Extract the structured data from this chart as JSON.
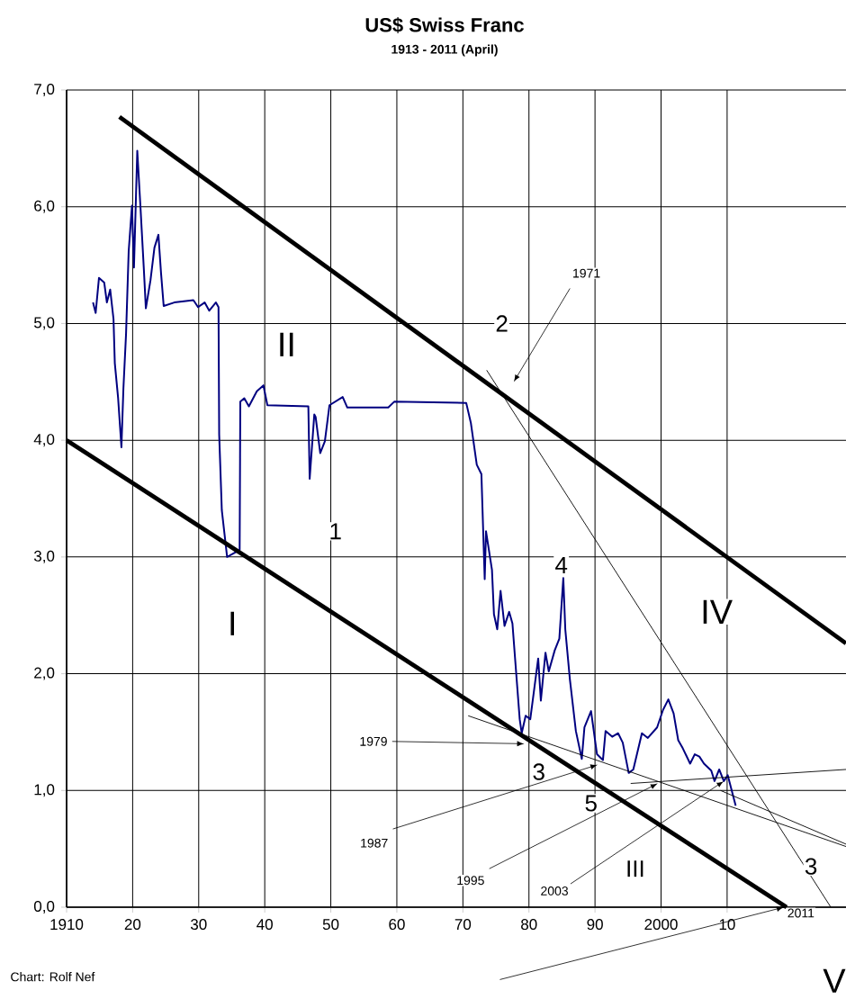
{
  "chart_data": {
    "type": "line",
    "title": "US$ Swiss Franc",
    "subtitle": "1913 - 2011 (April)",
    "xlim": [
      1910,
      2028
    ],
    "ylim": [
      0,
      7
    ],
    "grid": true,
    "marker": "none",
    "line_style": "solid",
    "xticks": [
      1910,
      {
        "value": 1920,
        "label": "20"
      },
      {
        "value": 1930,
        "label": "30"
      },
      {
        "value": 1940,
        "label": "40"
      },
      {
        "value": 1950,
        "label": "50"
      },
      {
        "value": 1960,
        "label": "60"
      },
      {
        "value": 1970,
        "label": "70"
      },
      {
        "value": 1980,
        "label": "80"
      },
      {
        "value": 1990,
        "label": "90"
      },
      2000,
      {
        "value": 2010,
        "label": "10"
      }
    ],
    "yticks": [
      {
        "value": 0,
        "label": "0,0"
      },
      {
        "value": 1,
        "label": "1,0"
      },
      {
        "value": 2,
        "label": "2,0"
      },
      {
        "value": 3,
        "label": "3,0"
      },
      {
        "value": 4,
        "label": "4,0"
      },
      {
        "value": 5,
        "label": "5,0"
      },
      {
        "value": 6,
        "label": "6,0"
      },
      {
        "value": 7,
        "label": "7,0"
      }
    ],
    "series": [
      {
        "color": "#000080",
        "x": [
          1914.0,
          1914.4,
          1914.9,
          1915.7,
          1916.1,
          1916.6,
          1917.1,
          1917.3,
          1917.8,
          1918.3,
          1918.6,
          1919.0,
          1919.4,
          1919.9,
          1920.2,
          1920.7,
          1921.2,
          1921.7,
          1922.0,
          1922.7,
          1923.3,
          1923.9,
          1924.3,
          1924.7,
          1926.3,
          1929.2,
          1929.9,
          1930.9,
          1931.6,
          1932.6,
          1933.0,
          1933.1,
          1933.5,
          1934.3,
          1936.2,
          1936.3,
          1936.9,
          1937.6,
          1938.8,
          1939.8,
          1940.4,
          1946.6,
          1946.8,
          1947.5,
          1947.7,
          1948.4,
          1949.1,
          1949.8,
          1951.8,
          1952.5,
          1958.7,
          1959.6,
          1970.5,
          1971.2,
          1972.1,
          1972.8,
          1973.3,
          1973.5,
          1974.4,
          1974.7,
          1975.2,
          1975.7,
          1976.3,
          1977.0,
          1977.5,
          1977.9,
          1978.6,
          1978.9,
          1979.5,
          1980.2,
          1981.4,
          1981.8,
          1982.5,
          1983.0,
          1983.9,
          1984.6,
          1985.2,
          1985.5,
          1986.2,
          1987.1,
          1988.0,
          1988.4,
          1989.4,
          1990.3,
          1991.2,
          1991.6,
          1992.6,
          1993.5,
          1994.2,
          1995.1,
          1995.8,
          1997.1,
          1998.0,
          1999.4,
          2000.3,
          2001.1,
          2001.9,
          2002.6,
          2003.3,
          2004.4,
          2005.1,
          2005.8,
          2006.5,
          2007.6,
          2008.1,
          2008.8,
          2009.5,
          2010.1,
          2011.3
        ],
        "values": [
          5.18,
          5.09,
          5.39,
          5.35,
          5.18,
          5.29,
          5.04,
          4.66,
          4.36,
          3.94,
          4.44,
          4.91,
          5.62,
          6.01,
          5.48,
          6.48,
          5.98,
          5.46,
          5.13,
          5.37,
          5.65,
          5.76,
          5.43,
          5.15,
          5.18,
          5.2,
          5.14,
          5.18,
          5.11,
          5.18,
          5.14,
          4.05,
          3.4,
          3.0,
          3.06,
          4.33,
          4.36,
          4.29,
          4.42,
          4.47,
          4.3,
          4.29,
          3.67,
          4.22,
          4.2,
          3.89,
          3.99,
          4.3,
          4.37,
          4.28,
          4.28,
          4.33,
          4.32,
          4.15,
          3.79,
          3.71,
          2.81,
          3.22,
          2.89,
          2.51,
          2.38,
          2.71,
          2.41,
          2.53,
          2.43,
          2.13,
          1.61,
          1.49,
          1.64,
          1.61,
          2.13,
          1.77,
          2.18,
          2.02,
          2.2,
          2.3,
          2.82,
          2.38,
          1.95,
          1.51,
          1.27,
          1.54,
          1.68,
          1.31,
          1.26,
          1.51,
          1.46,
          1.49,
          1.41,
          1.15,
          1.18,
          1.49,
          1.45,
          1.54,
          1.69,
          1.78,
          1.66,
          1.43,
          1.36,
          1.23,
          1.31,
          1.29,
          1.23,
          1.17,
          1.08,
          1.18,
          1.08,
          1.13,
          0.87
        ]
      },
      {
        "color": "#000000",
        "x": [
          1918.0,
          2028.0
        ],
        "values": [
          6.77,
          2.26
        ]
      },
      {
        "color": "#000000",
        "x": [
          1910.0,
          2019.0
        ],
        "values": [
          4.0,
          0.0
        ]
      },
      {
        "color": "#000000",
        "x": [
          1973.6,
          2025.7
        ],
        "values": [
          4.6,
          0.0
        ]
      },
      {
        "color": "#000000",
        "x": [
          1970.8,
          2028.0
        ],
        "values": [
          1.64,
          0.52
        ]
      },
      {
        "color": "#000000",
        "x": [
          1995.4,
          2028.0
        ],
        "values": [
          1.06,
          1.18
        ]
      },
      {
        "color": "#000000",
        "x": [
          2009.0,
          2028.0
        ],
        "values": [
          1.0,
          0.54
        ]
      }
    ],
    "annotations": [
      "1971",
      "2",
      "II",
      "1",
      "I",
      "IV",
      "4",
      {
        "text": "1979",
        "x": 1979.3,
        "y": 1.4
      },
      "3",
      {
        "text": "1987",
        "x": 1990.4,
        "y": 1.22
      },
      "5",
      {
        "text": "1995",
        "x": 1999.5,
        "y": 1.06
      },
      {
        "text": "2003",
        "x": 2009.5,
        "y": 1.08
      },
      "III",
      "3",
      "2011",
      "V",
      "Chart: Rolf Nef"
    ]
  }
}
